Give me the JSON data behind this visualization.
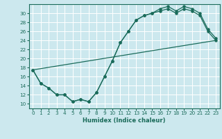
{
  "xlabel": "Humidex (Indice chaleur)",
  "ylabel": "",
  "bg_color": "#cce8ee",
  "grid_color": "#ffffff",
  "line_color": "#1a6b5a",
  "xlim": [
    -0.5,
    23.5
  ],
  "ylim": [
    9,
    32
  ],
  "xticks": [
    0,
    1,
    2,
    3,
    4,
    5,
    6,
    7,
    8,
    9,
    10,
    11,
    12,
    13,
    14,
    15,
    16,
    17,
    18,
    19,
    20,
    21,
    22,
    23
  ],
  "yticks": [
    10,
    12,
    14,
    16,
    18,
    20,
    22,
    24,
    26,
    28,
    30
  ],
  "curve1_x": [
    0,
    1,
    2,
    3,
    4,
    5,
    6,
    7,
    8,
    9,
    10,
    11,
    12,
    13,
    14,
    15,
    16,
    17,
    18,
    19,
    20,
    21,
    22,
    23
  ],
  "curve1_y": [
    17.5,
    14.5,
    13.5,
    12.0,
    12.0,
    10.5,
    11.0,
    10.5,
    12.5,
    16.0,
    19.5,
    23.5,
    26.0,
    28.5,
    29.5,
    30.0,
    31.0,
    31.5,
    30.5,
    31.5,
    31.0,
    30.0,
    26.5,
    24.5
  ],
  "curve2_x": [
    0,
    1,
    2,
    3,
    4,
    5,
    6,
    7,
    8,
    9,
    10,
    11,
    12,
    13,
    14,
    15,
    16,
    17,
    18,
    19,
    20,
    21,
    22,
    23
  ],
  "curve2_y": [
    17.5,
    14.5,
    13.5,
    12.0,
    12.0,
    10.5,
    11.0,
    10.5,
    12.5,
    16.0,
    19.5,
    23.5,
    26.0,
    28.5,
    29.5,
    30.0,
    30.5,
    31.0,
    30.0,
    31.0,
    30.5,
    29.5,
    26.0,
    24.0
  ],
  "line_x": [
    0,
    23
  ],
  "line_y": [
    17.5,
    24.0
  ]
}
